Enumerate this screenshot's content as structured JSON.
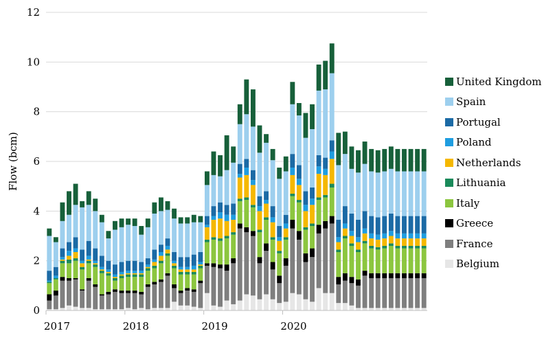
{
  "chart_data": {
    "type": "bar",
    "stacked": true,
    "title": "",
    "xlabel": "",
    "ylabel": "Flow (bcm)",
    "ylim": [
      0,
      12
    ],
    "yticks": [
      0,
      2,
      4,
      6,
      8,
      10,
      12
    ],
    "x_tick_labels": [
      "2017",
      "2018",
      "2019",
      "2020"
    ],
    "grid": "horizontal",
    "legend_position": "right",
    "categories": [
      "2017-01",
      "2017-02",
      "2017-03",
      "2017-04",
      "2017-05",
      "2017-06",
      "2017-07",
      "2017-08",
      "2017-09",
      "2017-10",
      "2017-11",
      "2017-12",
      "2018-01",
      "2018-02",
      "2018-03",
      "2018-04",
      "2018-05",
      "2018-06",
      "2018-07",
      "2018-08",
      "2018-09",
      "2018-10",
      "2018-11",
      "2018-12",
      "2019-01",
      "2019-02",
      "2019-03",
      "2019-04",
      "2019-05",
      "2019-06",
      "2019-07",
      "2019-08",
      "2019-09",
      "2019-10",
      "2019-11",
      "2019-12",
      "2020-01",
      "2020-02",
      "2020-03",
      "2020-04",
      "2020-05",
      "2020-06",
      "2020-07",
      "2020-08",
      "2020-09",
      "2020-10",
      "2020-11",
      "2020-12",
      "2021-01",
      "2021-02",
      "2021-03",
      "2021-04",
      "2021-05",
      "2021-06",
      "2021-07",
      "2021-08",
      "2021-09",
      "2021-10"
    ],
    "series": [
      {
        "name": "Belgium",
        "color": "#e6e6e6",
        "values": [
          0.05,
          0.05,
          0.1,
          0.2,
          0.15,
          0.1,
          0.1,
          0.05,
          0.05,
          0.05,
          0.05,
          0.05,
          0.1,
          0.05,
          0.1,
          0.05,
          0.1,
          0.1,
          0.1,
          0.35,
          0.2,
          0.2,
          0.15,
          0.1,
          0.7,
          0.2,
          0.15,
          0.4,
          0.25,
          0.4,
          0.65,
          0.6,
          0.45,
          0.65,
          0.45,
          0.3,
          0.35,
          0.7,
          0.65,
          0.45,
          0.35,
          0.9,
          0.7,
          0.7,
          0.3,
          0.3,
          0.2,
          0.1,
          0.1,
          0.1,
          0.1,
          0.1,
          0.1,
          0.1,
          0.1,
          0.1,
          0.1,
          0.1
        ]
      },
      {
        "name": "France",
        "color": "#7f7f7f",
        "values": [
          0.35,
          0.55,
          1.1,
          1.0,
          1.1,
          0.7,
          1.1,
          0.9,
          0.55,
          0.6,
          0.7,
          0.65,
          0.6,
          0.65,
          0.55,
          0.9,
          0.95,
          1.05,
          1.3,
          0.55,
          0.5,
          0.6,
          0.6,
          1.0,
          1.1,
          1.55,
          1.55,
          1.2,
          1.65,
          2.9,
          2.5,
          2.4,
          1.45,
          1.75,
          1.2,
          0.8,
          1.45,
          2.6,
          2.2,
          1.5,
          1.8,
          2.2,
          2.6,
          2.8,
          0.75,
          0.9,
          0.9,
          0.9,
          1.3,
          1.2,
          1.2,
          1.2,
          1.2,
          1.2,
          1.2,
          1.2,
          1.2,
          1.2
        ]
      },
      {
        "name": "Greece",
        "color": "#000000",
        "values": [
          0.25,
          0.2,
          0.15,
          0.1,
          0.05,
          0.05,
          0.1,
          0.1,
          0.05,
          0.1,
          0.1,
          0.1,
          0.1,
          0.1,
          0.1,
          0.1,
          0.1,
          0.1,
          0.1,
          0.15,
          0.1,
          0.1,
          0.1,
          0.1,
          0.1,
          0.15,
          0.15,
          0.25,
          0.2,
          0.2,
          0.2,
          0.2,
          0.25,
          0.3,
          0.3,
          0.3,
          0.3,
          0.35,
          0.35,
          0.35,
          0.35,
          0.35,
          0.3,
          0.3,
          0.3,
          0.3,
          0.25,
          0.25,
          0.2,
          0.2,
          0.2,
          0.2,
          0.2,
          0.2,
          0.2,
          0.2,
          0.2,
          0.2
        ]
      },
      {
        "name": "Italy",
        "color": "#8cc63f",
        "values": [
          0.45,
          0.45,
          0.55,
          0.6,
          0.7,
          0.8,
          0.6,
          0.7,
          0.85,
          0.65,
          0.35,
          0.5,
          0.55,
          0.55,
          0.6,
          0.55,
          0.55,
          0.65,
          0.7,
          0.65,
          0.65,
          0.55,
          0.6,
          0.5,
          0.85,
          0.95,
          0.95,
          1.05,
          0.95,
          0.9,
          1.1,
          0.95,
          1.0,
          0.95,
          0.9,
          0.9,
          0.75,
          0.95,
          1.15,
          0.95,
          0.9,
          1.0,
          0.95,
          1.15,
          1.0,
          1.4,
          1.25,
          1.1,
          1.1,
          1.0,
          0.95,
          1.0,
          1.1,
          1.0,
          1.0,
          1.0,
          1.0,
          1.0
        ]
      },
      {
        "name": "Lithuania",
        "color": "#1a8a5a",
        "values": [
          0.05,
          0.05,
          0.1,
          0.15,
          0.1,
          0.1,
          0.1,
          0.1,
          0.1,
          0.1,
          0.1,
          0.1,
          0.1,
          0.1,
          0.1,
          0.1,
          0.1,
          0.1,
          0.1,
          0.1,
          0.1,
          0.1,
          0.1,
          0.1,
          0.1,
          0.1,
          0.1,
          0.1,
          0.1,
          0.1,
          0.1,
          0.1,
          0.1,
          0.1,
          0.1,
          0.1,
          0.1,
          0.1,
          0.1,
          0.1,
          0.1,
          0.1,
          0.1,
          0.15,
          0.1,
          0.1,
          0.1,
          0.1,
          0.1,
          0.1,
          0.1,
          0.1,
          0.1,
          0.1,
          0.1,
          0.1,
          0.1,
          0.1
        ]
      },
      {
        "name": "Netherlands",
        "color": "#f5b800",
        "values": [
          0.0,
          0.0,
          0.05,
          0.15,
          0.25,
          0.15,
          0.05,
          0.05,
          0.05,
          0.05,
          0.05,
          0.05,
          0.05,
          0.05,
          0.05,
          0.05,
          0.15,
          0.2,
          0.15,
          0.1,
          0.1,
          0.1,
          0.1,
          0.05,
          0.5,
          0.7,
          0.8,
          0.6,
          0.5,
          0.85,
          0.9,
          0.8,
          0.75,
          0.55,
          0.6,
          0.4,
          0.35,
          0.75,
          0.6,
          0.65,
          0.75,
          0.95,
          0.8,
          1.0,
          0.3,
          0.3,
          0.3,
          0.3,
          0.3,
          0.3,
          0.3,
          0.3,
          0.3,
          0.3,
          0.3,
          0.3,
          0.3,
          0.3
        ]
      },
      {
        "name": "Poland",
        "color": "#1f9de0",
        "values": [
          0.05,
          0.1,
          0.1,
          0.2,
          0.15,
          0.1,
          0.15,
          0.1,
          0.1,
          0.1,
          0.1,
          0.1,
          0.1,
          0.1,
          0.1,
          0.1,
          0.1,
          0.15,
          0.15,
          0.1,
          0.1,
          0.1,
          0.15,
          0.1,
          0.1,
          0.15,
          0.25,
          0.25,
          0.2,
          0.15,
          0.3,
          0.2,
          0.2,
          0.15,
          0.2,
          0.15,
          0.2,
          0.3,
          0.25,
          0.25,
          0.25,
          0.3,
          0.25,
          0.3,
          0.2,
          0.2,
          0.2,
          0.2,
          0.2,
          0.2,
          0.2,
          0.2,
          0.2,
          0.2,
          0.2,
          0.2,
          0.2,
          0.2
        ]
      },
      {
        "name": "Portugal",
        "color": "#1b6aa5",
        "values": [
          0.4,
          0.35,
          0.35,
          0.35,
          0.45,
          0.45,
          0.6,
          0.5,
          0.45,
          0.35,
          0.4,
          0.4,
          0.4,
          0.4,
          0.35,
          0.25,
          0.4,
          0.3,
          0.3,
          0.35,
          0.4,
          0.4,
          0.45,
          0.4,
          0.35,
          0.4,
          0.4,
          0.4,
          0.45,
          0.4,
          0.35,
          0.4,
          0.4,
          0.35,
          0.45,
          0.45,
          0.35,
          0.55,
          0.55,
          0.55,
          0.45,
          0.45,
          0.45,
          0.45,
          0.7,
          0.7,
          0.7,
          0.7,
          0.7,
          0.7,
          0.7,
          0.7,
          0.7,
          0.7,
          0.7,
          0.7,
          0.7,
          0.7
        ]
      },
      {
        "name": "Spain",
        "color": "#9dcfee",
        "values": [
          1.4,
          1.0,
          1.1,
          1.1,
          1.3,
          1.7,
          1.45,
          1.5,
          1.35,
          0.9,
          1.4,
          1.4,
          1.45,
          1.4,
          1.1,
          1.25,
          1.45,
          1.35,
          1.15,
          1.35,
          1.35,
          1.35,
          1.3,
          1.2,
          1.25,
          1.25,
          1.05,
          1.4,
          1.65,
          1.6,
          1.8,
          1.75,
          1.75,
          1.95,
          1.85,
          1.9,
          1.75,
          2.0,
          2.0,
          2.15,
          2.35,
          2.6,
          2.75,
          2.7,
          2.2,
          2.1,
          1.8,
          1.9,
          1.9,
          1.8,
          1.8,
          1.8,
          1.8,
          1.8,
          1.8,
          1.8,
          1.8,
          1.8
        ]
      },
      {
        "name": "United Kingdom",
        "color": "#17603a",
        "values": [
          0.3,
          0.2,
          0.75,
          0.95,
          0.85,
          0.25,
          0.55,
          0.5,
          0.3,
          0.3,
          0.35,
          0.35,
          0.25,
          0.3,
          0.35,
          0.35,
          0.45,
          0.55,
          0.35,
          0.4,
          0.25,
          0.25,
          0.3,
          0.25,
          0.55,
          0.95,
          0.85,
          1.4,
          0.65,
          0.8,
          1.4,
          1.5,
          1.1,
          0.35,
          0.45,
          0.45,
          0.6,
          0.9,
          0.5,
          1.0,
          1.0,
          1.05,
          1.15,
          1.2,
          1.3,
          0.9,
          0.9,
          0.9,
          0.9,
          0.9,
          0.9,
          0.9,
          0.9,
          0.9,
          0.9,
          0.9,
          0.9,
          0.9
        ]
      }
    ]
  }
}
